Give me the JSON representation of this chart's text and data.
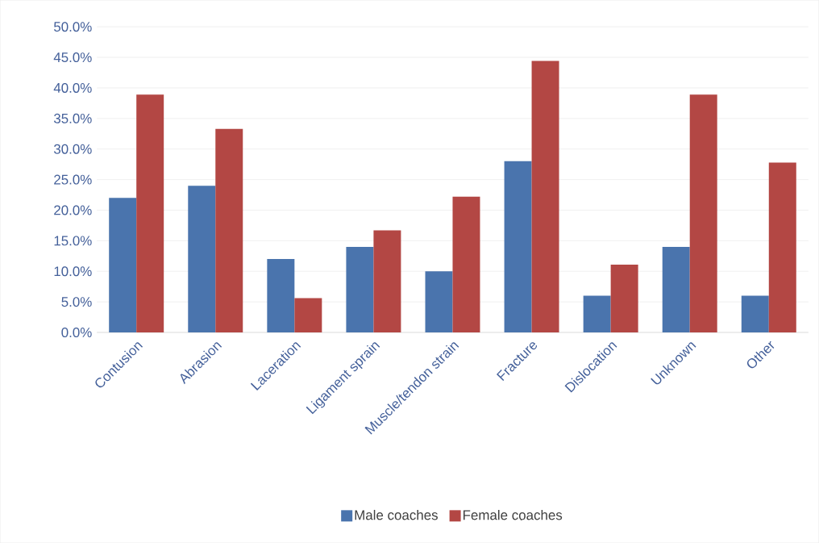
{
  "chart_data": {
    "type": "bar",
    "categories": [
      "Contusion",
      "Abrasion",
      "Laceration",
      "Ligament sprain",
      "Muscle/tendon strain",
      "Fracture",
      "Dislocation",
      "Unknown",
      "Other"
    ],
    "series": [
      {
        "name": "Male coaches",
        "color": "#4a74ad",
        "values": [
          22,
          24,
          12,
          14,
          10,
          28,
          6,
          14,
          6
        ]
      },
      {
        "name": "Female coaches",
        "color": "#b34744",
        "values": [
          38.9,
          33.3,
          5.6,
          16.7,
          22.2,
          44.4,
          11.1,
          38.9,
          27.8
        ]
      }
    ],
    "ylim": [
      0,
      50
    ],
    "yticks": [
      {
        "value": 0,
        "label": "0.0%"
      },
      {
        "value": 5,
        "label": "5.0%"
      },
      {
        "value": 10,
        "label": "10.0%"
      },
      {
        "value": 15,
        "label": "15.0%"
      },
      {
        "value": 20,
        "label": "20.0%"
      },
      {
        "value": 25,
        "label": "25.0%"
      },
      {
        "value": 30,
        "label": "30.0%"
      },
      {
        "value": 35,
        "label": "35.0%"
      },
      {
        "value": 40,
        "label": "40.0%"
      },
      {
        "value": 45,
        "label": "45.0%"
      },
      {
        "value": 50,
        "label": "50.0%"
      }
    ],
    "grid": "y",
    "legend": "bottom"
  }
}
